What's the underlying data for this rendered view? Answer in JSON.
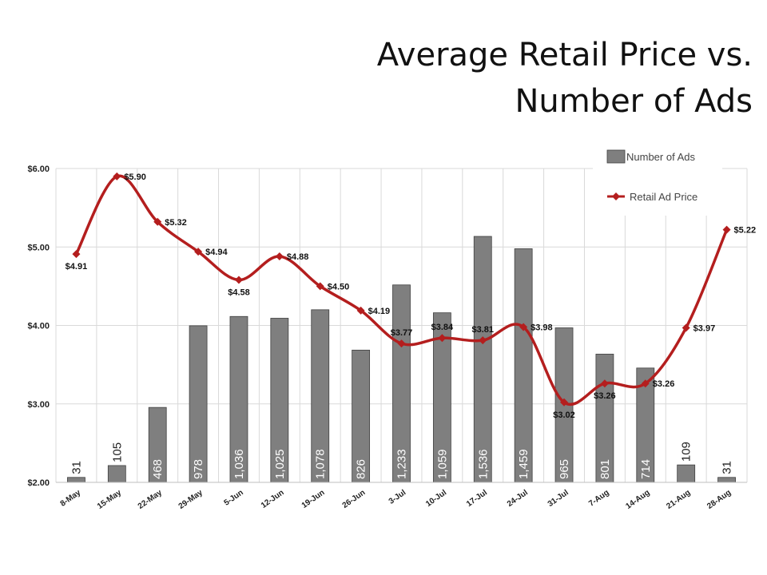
{
  "chart_data": {
    "type": "bar+line",
    "title_line1": "Average Retail Price vs.",
    "title_line2": "Number of Ads",
    "categories": [
      "8-May",
      "15-May",
      "22-May",
      "29-May",
      "5-Jun",
      "12-Jun",
      "19-Jun",
      "26-Jun",
      "3-Jul",
      "10-Jul",
      "17-Jul",
      "24-Jul",
      "31-Jul",
      "7-Aug",
      "14-Aug",
      "21-Aug",
      "28-Aug"
    ],
    "series": [
      {
        "name": "Number of  Ads",
        "type": "bar",
        "color": "#7f7f7f",
        "values": [
          31,
          105,
          468,
          978,
          1036,
          1025,
          1078,
          826,
          1233,
          1059,
          1536,
          1459,
          965,
          801,
          714,
          109,
          31
        ],
        "labels": [
          "31",
          "105",
          "468",
          "978",
          "1,036",
          "1,025",
          "1,078",
          "826",
          "1,233",
          "1,059",
          "1,536",
          "1,459",
          "965",
          "801",
          "714",
          "109",
          "31"
        ]
      },
      {
        "name": "Retail Ad Price",
        "type": "line",
        "color": "#b41e1e",
        "values": [
          4.91,
          5.9,
          5.32,
          4.94,
          4.58,
          4.88,
          4.5,
          4.19,
          3.77,
          3.84,
          3.81,
          3.98,
          3.02,
          3.26,
          3.26,
          3.97,
          5.22
        ],
        "labels": [
          "$4.91",
          "$5.90",
          "$5.32",
          "$4.94",
          "$4.58",
          "$4.88",
          "$4.50",
          "$4.19",
          "$3.77",
          "$3.84",
          "$3.81",
          "$3.98",
          "$3.02",
          "$3.26",
          "$3.26",
          "$3.97",
          "$5.22"
        ]
      }
    ],
    "ylim": [
      2.0,
      6.0
    ],
    "ytick_values": [
      2,
      3,
      4,
      5,
      6
    ],
    "yticks": [
      "$2.00",
      "$3.00",
      "$4.00",
      "$5.00",
      "$6.00"
    ],
    "grid": true,
    "legend_position": "top-right",
    "bar_axis_max": 1960
  }
}
